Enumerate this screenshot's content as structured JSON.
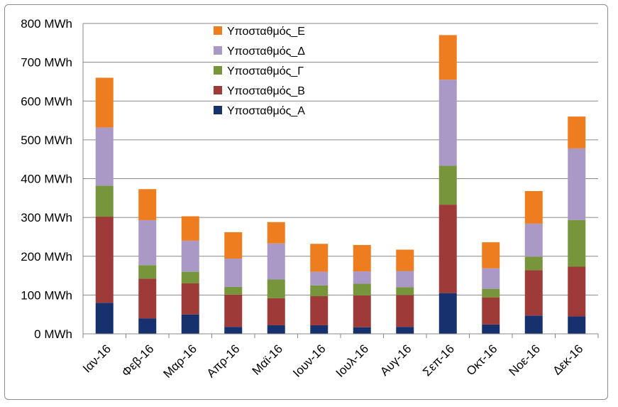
{
  "chart_data": {
    "type": "bar",
    "stacked": true,
    "title": "",
    "xlabel": "",
    "ylabel": "",
    "ylim": [
      0,
      800
    ],
    "y_ticks": [
      0,
      100,
      200,
      300,
      400,
      500,
      600,
      700,
      800
    ],
    "y_tick_labels": [
      "0 MWh",
      "100 MWh",
      "200 MWh",
      "300 MWh",
      "400 MWh",
      "500 MWh",
      "600 MWh",
      "700 MWh",
      "800 MWh"
    ],
    "grid": true,
    "legend_position": "top-center",
    "categories": [
      "Ιαν-16",
      "Φεβ-16",
      "Μαρ-16",
      "Απρ-16",
      "Μαϊ-16",
      "Ιουν-16",
      "Ιουλ-16",
      "Αυγ-16",
      "Σεπ-16",
      "Οκτ-16",
      "Νοε-16",
      "Δεκ-16"
    ],
    "series": [
      {
        "name": "Υποσταθμός_Α",
        "color": "#17306e",
        "values": [
          80,
          40,
          50,
          18,
          22,
          22,
          17,
          18,
          105,
          24,
          47,
          45
        ]
      },
      {
        "name": "Υποσταθμός_Β",
        "color": "#9e3b39",
        "values": [
          222,
          102,
          80,
          83,
          70,
          75,
          82,
          82,
          228,
          70,
          117,
          128
        ]
      },
      {
        "name": "Υποσταθμός_Γ",
        "color": "#77963c",
        "values": [
          80,
          35,
          30,
          20,
          48,
          28,
          30,
          20,
          100,
          22,
          35,
          120
        ]
      },
      {
        "name": "Υποσταθμός_Δ",
        "color": "#aa99c6",
        "values": [
          150,
          116,
          80,
          73,
          93,
          35,
          32,
          42,
          222,
          53,
          85,
          185
        ]
      },
      {
        "name": "Υποσταθμός_Ε",
        "color": "#ed7d1f",
        "values": [
          128,
          80,
          63,
          68,
          55,
          72,
          68,
          55,
          115,
          67,
          84,
          82
        ]
      }
    ]
  }
}
